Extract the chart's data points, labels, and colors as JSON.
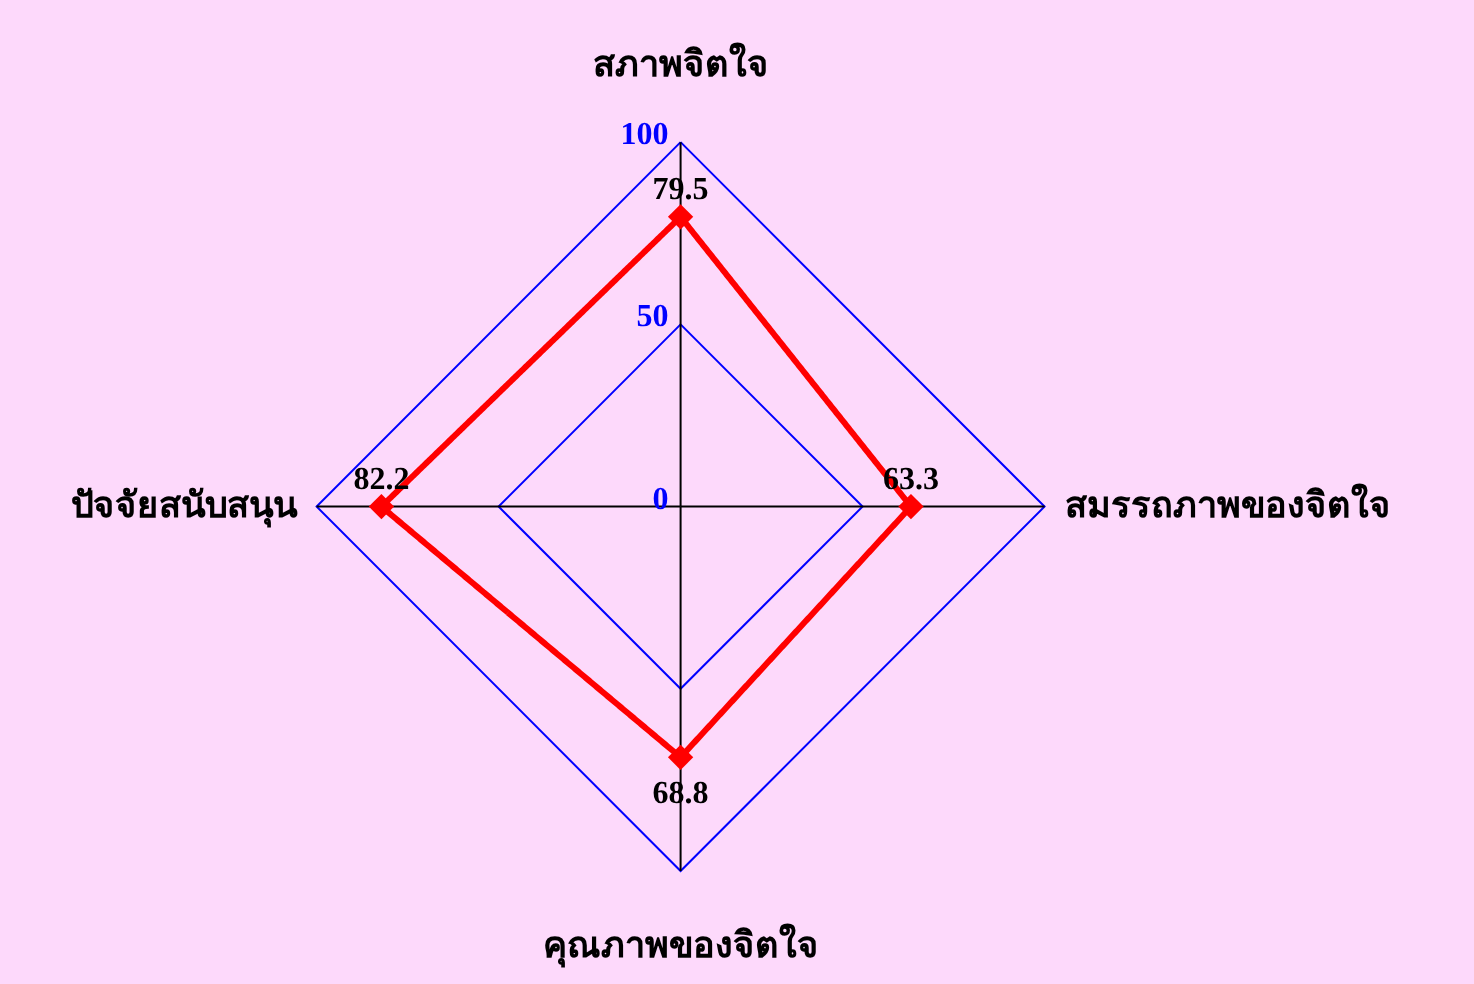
{
  "chart_data": {
    "type": "radar",
    "categories": [
      "สภาพจิตใจ",
      "สมรรถภาพของจิตใจ",
      "คุณภาพของจิตใจ",
      "ปัจจัยสนับสนุน"
    ],
    "series": [
      {
        "color": "#ff0000",
        "values": [
          79.5,
          63.3,
          68.8,
          82.2
        ]
      }
    ],
    "ylim": [
      0,
      100
    ],
    "yticks": [
      0,
      50,
      100
    ],
    "grid": true,
    "data_labels": true,
    "marker": "diamond",
    "line_style": "solid"
  }
}
